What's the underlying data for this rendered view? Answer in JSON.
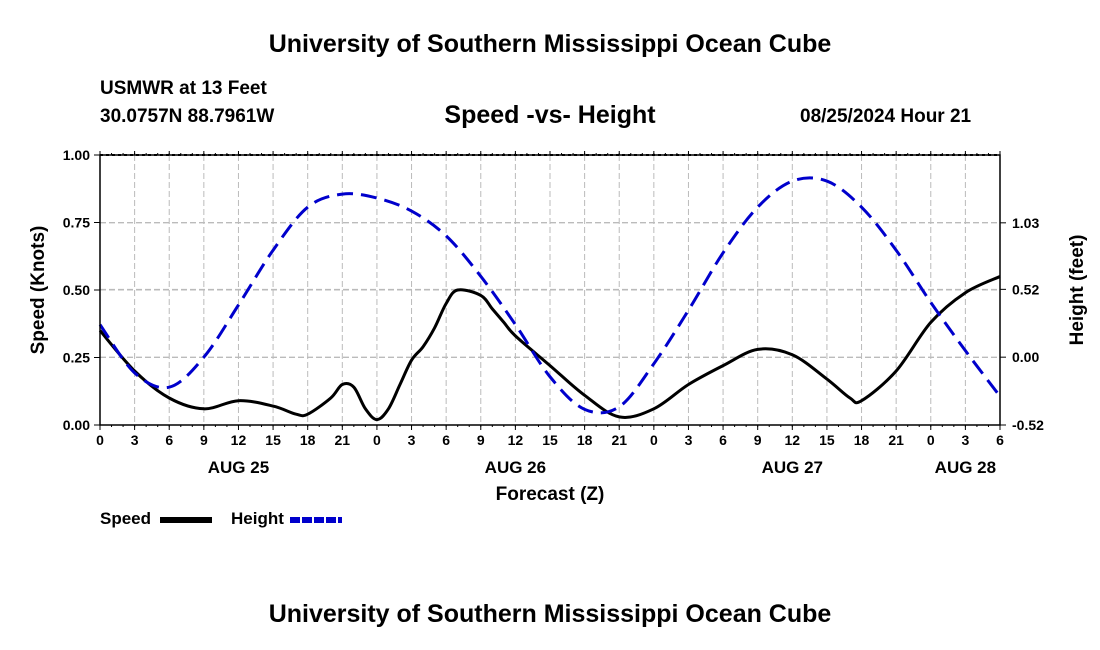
{
  "header": {
    "title": "University of Southern Mississippi Ocean Cube",
    "station": "USMWR at 13 Feet",
    "coords": "30.0757N  88.7961W",
    "subtitle": "Speed -vs- Height",
    "datetime": "08/25/2024 Hour 21"
  },
  "footer": {
    "title": "University of Southern Mississippi Ocean Cube"
  },
  "chart_data": {
    "type": "line",
    "xlabel": "Forecast (Z)",
    "ylabel": "Speed (Knots)",
    "y2label": "Height (feet)",
    "x_range": [
      0,
      78
    ],
    "ylim": [
      0,
      1
    ],
    "y2lim": [
      -0.52,
      1.55
    ],
    "grid": true,
    "x_tick_labels": [
      "0",
      "3",
      "6",
      "9",
      "12",
      "15",
      "18",
      "21",
      "0",
      "3",
      "6",
      "9",
      "12",
      "15",
      "18",
      "21",
      "0",
      "3",
      "6",
      "9",
      "12",
      "15",
      "18",
      "21",
      "0",
      "3",
      "6"
    ],
    "day_labels": [
      {
        "label": "AUG 25",
        "x": 12
      },
      {
        "label": "AUG 26",
        "x": 36
      },
      {
        "label": "AUG 27",
        "x": 60
      },
      {
        "label": "AUG 28",
        "x": 75
      }
    ],
    "y_ticks": [
      "0.00",
      "0.25",
      "0.50",
      "0.75",
      "1.00"
    ],
    "y2_ticks": [
      "-0.52",
      "0.00",
      "0.52",
      "1.03"
    ],
    "series": [
      {
        "name": "Speed",
        "axis": "left",
        "color": "#000000",
        "dash": "solid",
        "x": [
          0,
          3,
          6,
          9,
          12,
          15,
          17,
          18,
          20,
          21,
          22,
          23,
          24,
          25,
          26,
          27,
          28,
          29,
          30,
          31,
          33,
          34,
          35,
          36,
          39,
          42,
          45,
          48,
          51,
          54,
          57,
          60,
          63,
          65,
          66,
          69,
          72,
          75,
          78
        ],
        "y": [
          0.35,
          0.2,
          0.1,
          0.06,
          0.09,
          0.07,
          0.04,
          0.04,
          0.1,
          0.15,
          0.14,
          0.06,
          0.02,
          0.06,
          0.15,
          0.24,
          0.29,
          0.36,
          0.45,
          0.5,
          0.48,
          0.43,
          0.38,
          0.33,
          0.22,
          0.11,
          0.03,
          0.06,
          0.15,
          0.22,
          0.28,
          0.26,
          0.17,
          0.1,
          0.09,
          0.2,
          0.38,
          0.49,
          0.55
        ]
      },
      {
        "name": "Height",
        "axis": "right",
        "color": "#0000cc",
        "dash": "dashed",
        "x": [
          0,
          3,
          6,
          9,
          12,
          15,
          18,
          21,
          24,
          27,
          30,
          33,
          36,
          39,
          42,
          45,
          48,
          51,
          54,
          57,
          60,
          63,
          66,
          69,
          72,
          75,
          78
        ],
        "y": [
          0.25,
          -0.12,
          -0.23,
          0.0,
          0.4,
          0.82,
          1.15,
          1.25,
          1.22,
          1.12,
          0.93,
          0.62,
          0.25,
          -0.15,
          -0.4,
          -0.38,
          -0.05,
          0.36,
          0.8,
          1.15,
          1.35,
          1.35,
          1.15,
          0.82,
          0.42,
          0.05,
          -0.3
        ]
      }
    ]
  },
  "legend": {
    "speed_label": "Speed",
    "height_label": "Height"
  }
}
